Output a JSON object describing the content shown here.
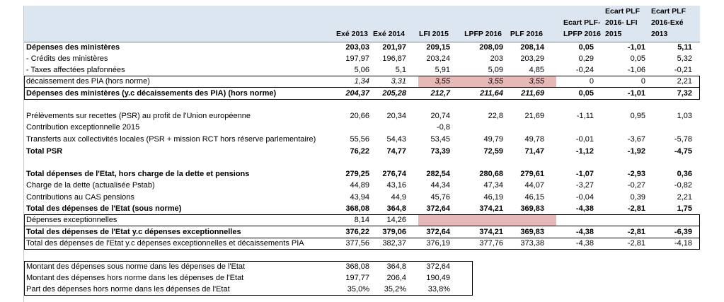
{
  "headers": {
    "exe2013": "Exé 2013",
    "exe2014": "Exé 2014",
    "lfi2015": "LFI 2015",
    "lpfp2016": "LPFP 2016",
    "plf2016": "PLF 2016",
    "ecart1": [
      "Ecart PLF-",
      "LPFP 2016"
    ],
    "ecart2": [
      "Ecart PLF",
      "2016- LFI",
      "2015"
    ],
    "ecart3": [
      "Ecart PLF",
      "2016-Exé",
      "2013"
    ]
  },
  "rows": [
    {
      "label": "Dépenses des ministères",
      "values": [
        "203,03",
        "201,97",
        "209,15",
        "208,09",
        "208,14",
        "0,05",
        "-1,01",
        "5,11"
      ],
      "style": "bold"
    },
    {
      "label": " - Crédits des ministères",
      "values": [
        "197,97",
        "196,87",
        "203,24",
        "203",
        "203,29",
        "0,29",
        "0,05",
        "5,32"
      ],
      "style": ""
    },
    {
      "label": " - Taxes affectées plafonnées",
      "values": [
        "5,06",
        "5,1",
        "5,91",
        "5,09",
        "4,85",
        "-0,24",
        "-1,06",
        "-0,21"
      ],
      "style": ""
    },
    {
      "label": "décaissement des PIA (hors norme)",
      "values": [
        "1,34",
        "3,31",
        "3,55",
        "3,55",
        "3,55",
        "0",
        "0",
        "2,21"
      ],
      "style": "ital-values"
    },
    {
      "label": "Dépenses des ministères (y.c décaissements des PIA) (hors norme)",
      "values": [
        "204,37",
        "205,28",
        "212,7",
        "211,64",
        "211,69",
        "0,05",
        "-1,01",
        "7,32"
      ],
      "style": "bold-italic-values"
    },
    {
      "label": "",
      "values": [
        "",
        "",
        "",
        "",
        "",
        "",
        "",
        ""
      ],
      "style": ""
    },
    {
      "label": "Prélèvements sur recettes (PSR) au profit de l'Union européenne",
      "values": [
        "20,66",
        "20,34",
        "20,74",
        "22,8",
        "21,69",
        "-1,11",
        "0,95",
        "1,03"
      ],
      "style": ""
    },
    {
      "label": "Contribution exceptionnelle 2015",
      "values": [
        "",
        "",
        "-0,8",
        "",
        "",
        "",
        "",
        ""
      ],
      "style": ""
    },
    {
      "label": "Transferts aux collectivités locales (PSR + mission RCT hors réserve parlementaire)",
      "values": [
        "55,56",
        "54,43",
        "53,45",
        "49,79",
        "49,78",
        "-0,01",
        "-3,67",
        "-5,78"
      ],
      "style": ""
    },
    {
      "label": "Total PSR",
      "values": [
        "76,22",
        "74,77",
        "73,39",
        "72,59",
        "71,47",
        "-1,12",
        "-1,92",
        "-4,75"
      ],
      "style": "bold"
    },
    {
      "label": "",
      "values": [
        "",
        "",
        "",
        "",
        "",
        "",
        "",
        ""
      ],
      "style": ""
    },
    {
      "label": "Total dépenses de l'Etat, hors charge de la dette et pensions",
      "values": [
        "279,25",
        "276,74",
        "282,54",
        "280,68",
        "279,61",
        "-1,07",
        "-2,93",
        "0,36"
      ],
      "style": "bold"
    },
    {
      "label": "Charge de la dette (actualisée Pstab)",
      "values": [
        "44,89",
        "43,16",
        "44,34",
        "47,34",
        "44,07",
        "-3,27",
        "-0,27",
        "-0,82"
      ],
      "style": ""
    },
    {
      "label": "Contributions au CAS pensions",
      "values": [
        "43,94",
        "44,9",
        "45,76",
        "46,19",
        "46,15",
        "-0,04",
        "0,39",
        "2,21"
      ],
      "style": ""
    },
    {
      "label": "Total des dépenses de l'Etat (sous norme)",
      "values": [
        "368,08",
        "364,8",
        "372,64",
        "374,21",
        "369,83",
        "-4,38",
        "-2,81",
        "1,75"
      ],
      "style": "bold"
    },
    {
      "label": "Dépenses exceptionnelles",
      "values": [
        "8,14",
        "14,26",
        "",
        "",
        "",
        "",
        "",
        ""
      ],
      "style": ""
    },
    {
      "label": "Total des dépenses de l'Etat y.c dépenses exceptionnelles",
      "values": [
        "376,22",
        "379,06",
        "372,64",
        "374,21",
        "369,83",
        "-4,38",
        "-2,81",
        "-6,39"
      ],
      "style": "bold"
    },
    {
      "label": "Total des dépenses de l'Etat y.c dépenses exceptionnelles et décaissements PIA",
      "values": [
        "377,56",
        "382,37",
        "376,19",
        "377,76",
        "373,38",
        "-4,38",
        "-2,81",
        "-4,18"
      ],
      "style": ""
    }
  ],
  "summary": [
    {
      "label": "Montant des dépenses sous norme dans les dépenses de l'Etat",
      "values": [
        "368,08",
        "364,8",
        "372,64"
      ]
    },
    {
      "label": "Montant des dépenses hors norme dans les dépenses de l'Etat",
      "values": [
        "197,77",
        "206,4",
        "190,49"
      ]
    },
    {
      "label": "Part des dépenses hors norme dans les dépenses de l'Etat",
      "values": [
        "35,0%",
        "35,2%",
        "33,8%"
      ]
    }
  ]
}
